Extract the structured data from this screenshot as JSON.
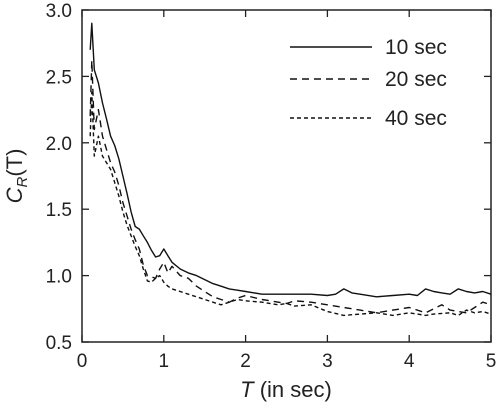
{
  "chart_data": {
    "type": "line",
    "xlabel": {
      "var": "T",
      "unit": " (in sec)"
    },
    "ylabel": {
      "var": "C",
      "sub": "R",
      "rest": "(T)"
    },
    "xlim": [
      0,
      5
    ],
    "ylim": [
      0.5,
      3.0
    ],
    "xticks": [
      0,
      1,
      2,
      3,
      4,
      5
    ],
    "yticks": [
      0.5,
      1.0,
      1.5,
      2.0,
      2.5,
      3.0
    ],
    "xtick_labels": [
      "0",
      "1",
      "2",
      "3",
      "4",
      "5"
    ],
    "ytick_labels": [
      "0.5",
      "1.0",
      "1.5",
      "2.0",
      "2.5",
      "3.0"
    ],
    "grid": false,
    "legend_position": "top-right",
    "series": [
      {
        "name": "10 sec",
        "dash": "solid",
        "points": [
          [
            0.1,
            2.7
          ],
          [
            0.12,
            2.9
          ],
          [
            0.15,
            2.55
          ],
          [
            0.2,
            2.45
          ],
          [
            0.25,
            2.3
          ],
          [
            0.3,
            2.18
          ],
          [
            0.35,
            2.05
          ],
          [
            0.4,
            1.98
          ],
          [
            0.45,
            1.88
          ],
          [
            0.5,
            1.75
          ],
          [
            0.55,
            1.62
          ],
          [
            0.6,
            1.48
          ],
          [
            0.65,
            1.37
          ],
          [
            0.7,
            1.35
          ],
          [
            0.75,
            1.3
          ],
          [
            0.8,
            1.25
          ],
          [
            0.85,
            1.19
          ],
          [
            0.9,
            1.14
          ],
          [
            0.95,
            1.15
          ],
          [
            1.0,
            1.2
          ],
          [
            1.05,
            1.15
          ],
          [
            1.1,
            1.1
          ],
          [
            1.2,
            1.05
          ],
          [
            1.3,
            1.02
          ],
          [
            1.4,
            1.0
          ],
          [
            1.5,
            0.97
          ],
          [
            1.6,
            0.94
          ],
          [
            1.7,
            0.92
          ],
          [
            1.8,
            0.9
          ],
          [
            1.9,
            0.89
          ],
          [
            2.0,
            0.88
          ],
          [
            2.2,
            0.86
          ],
          [
            2.4,
            0.86
          ],
          [
            2.6,
            0.86
          ],
          [
            2.8,
            0.86
          ],
          [
            3.0,
            0.85
          ],
          [
            3.1,
            0.86
          ],
          [
            3.2,
            0.9
          ],
          [
            3.3,
            0.87
          ],
          [
            3.4,
            0.86
          ],
          [
            3.6,
            0.84
          ],
          [
            3.8,
            0.85
          ],
          [
            4.0,
            0.86
          ],
          [
            4.1,
            0.85
          ],
          [
            4.2,
            0.9
          ],
          [
            4.3,
            0.88
          ],
          [
            4.4,
            0.87
          ],
          [
            4.5,
            0.86
          ],
          [
            4.6,
            0.9
          ],
          [
            4.7,
            0.88
          ],
          [
            4.8,
            0.87
          ],
          [
            4.9,
            0.88
          ],
          [
            5.0,
            0.86
          ]
        ]
      },
      {
        "name": "20 sec",
        "dash": "7,5",
        "points": [
          [
            0.1,
            2.2
          ],
          [
            0.12,
            2.62
          ],
          [
            0.15,
            2.1
          ],
          [
            0.2,
            2.25
          ],
          [
            0.25,
            2.05
          ],
          [
            0.3,
            1.95
          ],
          [
            0.35,
            1.85
          ],
          [
            0.4,
            1.78
          ],
          [
            0.45,
            1.68
          ],
          [
            0.5,
            1.55
          ],
          [
            0.55,
            1.45
          ],
          [
            0.6,
            1.35
          ],
          [
            0.65,
            1.27
          ],
          [
            0.7,
            1.2
          ],
          [
            0.75,
            1.08
          ],
          [
            0.8,
            1.0
          ],
          [
            0.9,
            0.98
          ],
          [
            0.95,
            1.05
          ],
          [
            1.0,
            1.1
          ],
          [
            1.05,
            1.02
          ],
          [
            1.1,
            1.07
          ],
          [
            1.2,
            1.0
          ],
          [
            1.3,
            0.98
          ],
          [
            1.4,
            0.92
          ],
          [
            1.5,
            0.88
          ],
          [
            1.6,
            0.84
          ],
          [
            1.7,
            0.82
          ],
          [
            1.8,
            0.8
          ],
          [
            1.9,
            0.83
          ],
          [
            2.0,
            0.85
          ],
          [
            2.2,
            0.82
          ],
          [
            2.4,
            0.8
          ],
          [
            2.5,
            0.79
          ],
          [
            2.6,
            0.81
          ],
          [
            2.8,
            0.8
          ],
          [
            3.0,
            0.78
          ],
          [
            3.2,
            0.76
          ],
          [
            3.4,
            0.74
          ],
          [
            3.6,
            0.72
          ],
          [
            3.8,
            0.74
          ],
          [
            4.0,
            0.76
          ],
          [
            4.2,
            0.72
          ],
          [
            4.3,
            0.75
          ],
          [
            4.4,
            0.78
          ],
          [
            4.5,
            0.74
          ],
          [
            4.6,
            0.73
          ],
          [
            4.7,
            0.72
          ],
          [
            4.8,
            0.76
          ],
          [
            4.9,
            0.8
          ],
          [
            5.0,
            0.78
          ]
        ]
      },
      {
        "name": "40 sec",
        "dash": "4,3",
        "points": [
          [
            0.1,
            2.05
          ],
          [
            0.12,
            2.38
          ],
          [
            0.15,
            1.9
          ],
          [
            0.2,
            2.05
          ],
          [
            0.25,
            1.9
          ],
          [
            0.3,
            1.85
          ],
          [
            0.35,
            1.8
          ],
          [
            0.4,
            1.7
          ],
          [
            0.45,
            1.6
          ],
          [
            0.5,
            1.48
          ],
          [
            0.55,
            1.38
          ],
          [
            0.6,
            1.3
          ],
          [
            0.65,
            1.22
          ],
          [
            0.7,
            1.15
          ],
          [
            0.75,
            1.05
          ],
          [
            0.8,
            0.96
          ],
          [
            0.85,
            0.95
          ],
          [
            0.9,
            0.98
          ],
          [
            0.95,
            1.0
          ],
          [
            1.0,
            0.95
          ],
          [
            1.05,
            0.92
          ],
          [
            1.1,
            0.9
          ],
          [
            1.2,
            0.88
          ],
          [
            1.3,
            0.86
          ],
          [
            1.4,
            0.84
          ],
          [
            1.5,
            0.82
          ],
          [
            1.6,
            0.8
          ],
          [
            1.7,
            0.78
          ],
          [
            1.8,
            0.8
          ],
          [
            1.9,
            0.82
          ],
          [
            2.0,
            0.81
          ],
          [
            2.2,
            0.8
          ],
          [
            2.4,
            0.78
          ],
          [
            2.5,
            0.79
          ],
          [
            2.6,
            0.77
          ],
          [
            2.8,
            0.78
          ],
          [
            3.0,
            0.73
          ],
          [
            3.2,
            0.7
          ],
          [
            3.4,
            0.71
          ],
          [
            3.6,
            0.72
          ],
          [
            3.8,
            0.7
          ],
          [
            4.0,
            0.72
          ],
          [
            4.2,
            0.7
          ],
          [
            4.3,
            0.71
          ],
          [
            4.5,
            0.72
          ],
          [
            4.6,
            0.7
          ],
          [
            4.7,
            0.74
          ],
          [
            4.8,
            0.72
          ],
          [
            4.9,
            0.73
          ],
          [
            5.0,
            0.71
          ]
        ]
      }
    ]
  }
}
